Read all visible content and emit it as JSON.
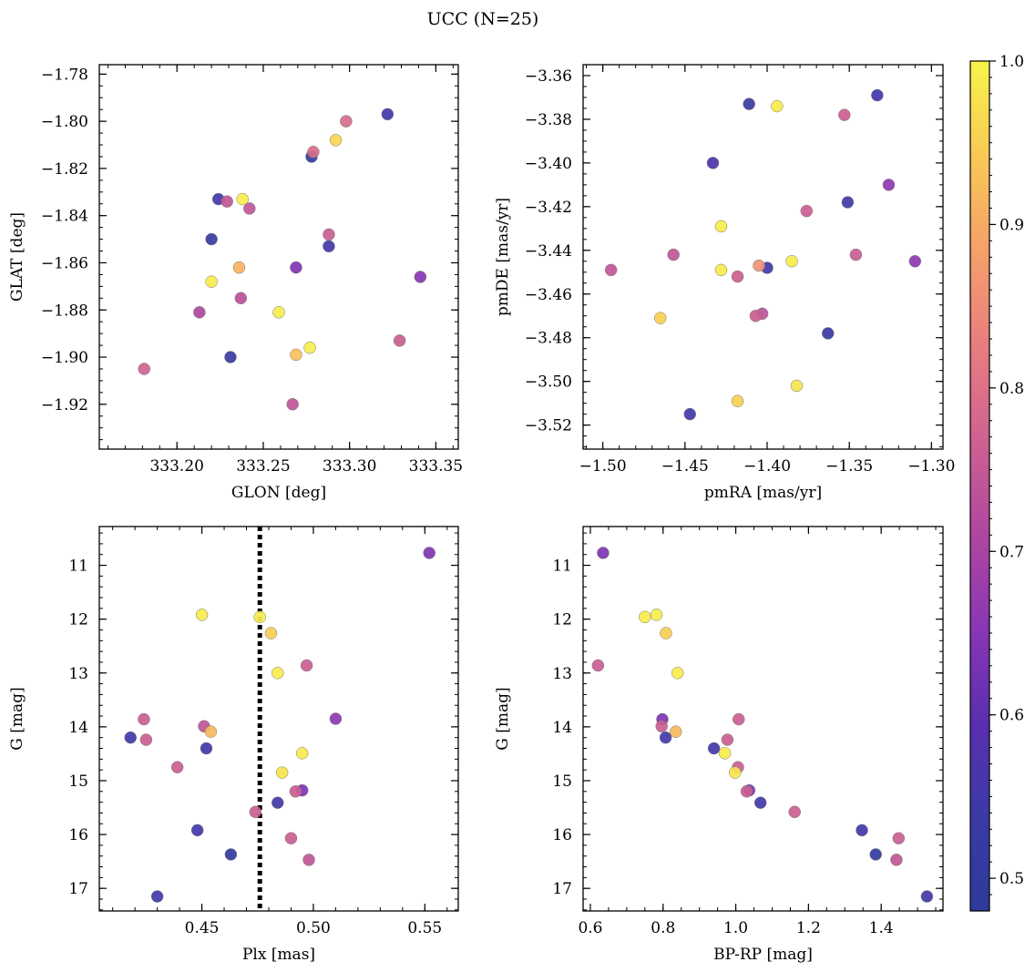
{
  "title": "UCC (N=25)",
  "colorbar": {
    "range": [
      0.48,
      1.0
    ],
    "ticks": [
      0.5,
      0.6,
      0.7,
      0.8,
      0.9,
      1.0
    ],
    "tick_labels": [
      "0.5",
      "0.6",
      "0.7",
      "0.8",
      "0.9",
      "1.0"
    ],
    "colormap": "plasma",
    "stops": [
      "#2d3b99",
      "#3b3aa6",
      "#5a2fb0",
      "#8a36b4",
      "#b0479f",
      "#cf6291",
      "#e87e7f",
      "#f6a06a",
      "#f8c955",
      "#f7f34a"
    ]
  },
  "chart_data": [
    {
      "type": "scatter",
      "xlabel": "GLON [deg]",
      "ylabel": "GLAT [deg]",
      "xlim": [
        333.155,
        333.363
      ],
      "ylim": [
        -1.939,
        -1.776
      ],
      "xticks": [
        333.2,
        333.25,
        333.3,
        333.35
      ],
      "xtick_labels": [
        "333.20",
        "333.25",
        "333.30",
        "333.35"
      ],
      "yticks": [
        -1.78,
        -1.8,
        -1.82,
        -1.84,
        -1.86,
        -1.88,
        -1.9,
        -1.92
      ],
      "ytick_labels": [
        "−1.78",
        "−1.80",
        "−1.82",
        "−1.84",
        "−1.86",
        "−1.88",
        "−1.90",
        "−1.92"
      ],
      "xminor": 0.01,
      "yminor": 0.005,
      "points": [
        {
          "x": 333.298,
          "y": -1.8,
          "c": 0.79
        },
        {
          "x": 333.292,
          "y": -1.808,
          "c": 0.96
        },
        {
          "x": 333.322,
          "y": -1.797,
          "c": 0.55
        },
        {
          "x": 333.279,
          "y": -1.813,
          "c": 0.79
        },
        {
          "x": 333.278,
          "y": -1.815,
          "c": 0.5
        },
        {
          "x": 333.224,
          "y": -1.833,
          "c": 0.55
        },
        {
          "x": 333.229,
          "y": -1.834,
          "c": 0.74
        },
        {
          "x": 333.238,
          "y": -1.833,
          "c": 0.99
        },
        {
          "x": 333.242,
          "y": -1.837,
          "c": 0.74
        },
        {
          "x": 333.22,
          "y": -1.85,
          "c": 0.53
        },
        {
          "x": 333.288,
          "y": -1.848,
          "c": 0.76
        },
        {
          "x": 333.288,
          "y": -1.853,
          "c": 0.55
        },
        {
          "x": 333.269,
          "y": -1.862,
          "c": 0.64
        },
        {
          "x": 333.236,
          "y": -1.862,
          "c": 0.91
        },
        {
          "x": 333.22,
          "y": -1.868,
          "c": 0.99
        },
        {
          "x": 333.341,
          "y": -1.866,
          "c": 0.65
        },
        {
          "x": 333.237,
          "y": -1.875,
          "c": 0.73
        },
        {
          "x": 333.213,
          "y": -1.881,
          "c": 0.71
        },
        {
          "x": 333.259,
          "y": -1.881,
          "c": 0.99
        },
        {
          "x": 333.277,
          "y": -1.896,
          "c": 0.99
        },
        {
          "x": 333.269,
          "y": -1.899,
          "c": 0.93
        },
        {
          "x": 333.231,
          "y": -1.9,
          "c": 0.53
        },
        {
          "x": 333.329,
          "y": -1.893,
          "c": 0.76
        },
        {
          "x": 333.181,
          "y": -1.905,
          "c": 0.77
        },
        {
          "x": 333.267,
          "y": -1.92,
          "c": 0.74
        }
      ]
    },
    {
      "type": "scatter",
      "xlabel": "pmRA [mas/yr]",
      "ylabel": "pmDE [mas/yr]",
      "xlim": [
        -1.512,
        -1.293
      ],
      "ylim": [
        -3.531,
        -3.355
      ],
      "xticks": [
        -1.5,
        -1.45,
        -1.4,
        -1.35,
        -1.3
      ],
      "xtick_labels": [
        "−1.50",
        "−1.45",
        "−1.40",
        "−1.35",
        "−1.30"
      ],
      "yticks": [
        -3.36,
        -3.38,
        -3.4,
        -3.42,
        -3.44,
        -3.46,
        -3.48,
        -3.5,
        -3.52
      ],
      "ytick_labels": [
        "−3.36",
        "−3.38",
        "−3.40",
        "−3.42",
        "−3.44",
        "−3.46",
        "−3.48",
        "−3.50",
        "−3.52"
      ],
      "xminor": 0.01,
      "yminor": 0.005,
      "points": [
        {
          "x": -1.411,
          "y": -3.373,
          "c": 0.53
        },
        {
          "x": -1.394,
          "y": -3.374,
          "c": 0.99
        },
        {
          "x": -1.333,
          "y": -3.369,
          "c": 0.55
        },
        {
          "x": -1.353,
          "y": -3.378,
          "c": 0.76
        },
        {
          "x": -1.433,
          "y": -3.4,
          "c": 0.57
        },
        {
          "x": -1.326,
          "y": -3.41,
          "c": 0.66
        },
        {
          "x": -1.351,
          "y": -3.418,
          "c": 0.55
        },
        {
          "x": -1.376,
          "y": -3.422,
          "c": 0.76
        },
        {
          "x": -1.428,
          "y": -3.429,
          "c": 0.99
        },
        {
          "x": -1.457,
          "y": -3.442,
          "c": 0.74
        },
        {
          "x": -1.346,
          "y": -3.442,
          "c": 0.76
        },
        {
          "x": -1.385,
          "y": -3.445,
          "c": 0.99
        },
        {
          "x": -1.31,
          "y": -3.445,
          "c": 0.66
        },
        {
          "x": -1.405,
          "y": -3.447,
          "c": 0.86
        },
        {
          "x": -1.4,
          "y": -3.448,
          "c": 0.55
        },
        {
          "x": -1.495,
          "y": -3.449,
          "c": 0.74
        },
        {
          "x": -1.428,
          "y": -3.449,
          "c": 0.99
        },
        {
          "x": -1.418,
          "y": -3.452,
          "c": 0.76
        },
        {
          "x": -1.403,
          "y": -3.469,
          "c": 0.74
        },
        {
          "x": -1.407,
          "y": -3.47,
          "c": 0.76
        },
        {
          "x": -1.465,
          "y": -3.471,
          "c": 0.95
        },
        {
          "x": -1.363,
          "y": -3.478,
          "c": 0.53
        },
        {
          "x": -1.382,
          "y": -3.502,
          "c": 0.98
        },
        {
          "x": -1.418,
          "y": -3.509,
          "c": 0.95
        },
        {
          "x": -1.447,
          "y": -3.515,
          "c": 0.55
        }
      ]
    },
    {
      "type": "scatter",
      "xlabel": "Plx [mas]",
      "ylabel": "G [mag]",
      "xlim": [
        0.404,
        0.565
      ],
      "ylim": [
        17.42,
        10.28
      ],
      "xticks": [
        0.45,
        0.5,
        0.55
      ],
      "xtick_labels": [
        "0.45",
        "0.50",
        "0.55"
      ],
      "yticks": [
        11,
        12,
        13,
        14,
        15,
        16,
        17
      ],
      "ytick_labels": [
        "11",
        "12",
        "13",
        "14",
        "15",
        "16",
        "17"
      ],
      "xminor": 0.01,
      "yminor": 0.2,
      "vline": 0.476,
      "points": [
        {
          "x": 0.552,
          "y": 10.77,
          "c": 0.64
        },
        {
          "x": 0.45,
          "y": 11.92,
          "c": 0.99
        },
        {
          "x": 0.476,
          "y": 11.96,
          "c": 0.99
        },
        {
          "x": 0.481,
          "y": 12.26,
          "c": 0.95
        },
        {
          "x": 0.497,
          "y": 12.86,
          "c": 0.76
        },
        {
          "x": 0.484,
          "y": 13.0,
          "c": 0.99
        },
        {
          "x": 0.424,
          "y": 13.86,
          "c": 0.76
        },
        {
          "x": 0.51,
          "y": 13.85,
          "c": 0.66
        },
        {
          "x": 0.451,
          "y": 13.99,
          "c": 0.74
        },
        {
          "x": 0.454,
          "y": 14.09,
          "c": 0.92
        },
        {
          "x": 0.418,
          "y": 14.2,
          "c": 0.55
        },
        {
          "x": 0.425,
          "y": 14.24,
          "c": 0.76
        },
        {
          "x": 0.452,
          "y": 14.4,
          "c": 0.55
        },
        {
          "x": 0.495,
          "y": 14.49,
          "c": 0.99
        },
        {
          "x": 0.439,
          "y": 14.75,
          "c": 0.76
        },
        {
          "x": 0.486,
          "y": 14.85,
          "c": 0.98
        },
        {
          "x": 0.495,
          "y": 15.18,
          "c": 0.64
        },
        {
          "x": 0.492,
          "y": 15.2,
          "c": 0.76
        },
        {
          "x": 0.484,
          "y": 15.41,
          "c": 0.55
        },
        {
          "x": 0.474,
          "y": 15.58,
          "c": 0.76
        },
        {
          "x": 0.448,
          "y": 15.92,
          "c": 0.55
        },
        {
          "x": 0.49,
          "y": 16.07,
          "c": 0.76
        },
        {
          "x": 0.463,
          "y": 16.37,
          "c": 0.5
        },
        {
          "x": 0.498,
          "y": 16.47,
          "c": 0.74
        },
        {
          "x": 0.43,
          "y": 17.15,
          "c": 0.55
        }
      ]
    },
    {
      "type": "scatter",
      "xlabel": "BP-RP [mag]",
      "ylabel": "G [mag]",
      "xlim": [
        0.58,
        1.57
      ],
      "ylim": [
        17.42,
        10.28
      ],
      "xticks": [
        0.6,
        0.8,
        1.0,
        1.2,
        1.4
      ],
      "xtick_labels": [
        "0.6",
        "0.8",
        "1.0",
        "1.2",
        "1.4"
      ],
      "yticks": [
        11,
        12,
        13,
        14,
        15,
        16,
        17
      ],
      "ytick_labels": [
        "11",
        "12",
        "13",
        "14",
        "15",
        "16",
        "17"
      ],
      "xminor": 0.05,
      "yminor": 0.2,
      "points": [
        {
          "x": 0.635,
          "y": 10.77,
          "c": 0.64
        },
        {
          "x": 0.782,
          "y": 11.92,
          "c": 0.99
        },
        {
          "x": 0.75,
          "y": 11.96,
          "c": 0.99
        },
        {
          "x": 0.808,
          "y": 12.26,
          "c": 0.95
        },
        {
          "x": 0.621,
          "y": 12.86,
          "c": 0.76
        },
        {
          "x": 0.84,
          "y": 13.0,
          "c": 0.99
        },
        {
          "x": 0.798,
          "y": 13.86,
          "c": 0.64
        },
        {
          "x": 1.008,
          "y": 13.86,
          "c": 0.76
        },
        {
          "x": 0.796,
          "y": 13.99,
          "c": 0.76
        },
        {
          "x": 0.835,
          "y": 14.09,
          "c": 0.92
        },
        {
          "x": 0.807,
          "y": 14.2,
          "c": 0.55
        },
        {
          "x": 0.977,
          "y": 14.24,
          "c": 0.76
        },
        {
          "x": 0.94,
          "y": 14.4,
          "c": 0.55
        },
        {
          "x": 0.97,
          "y": 14.49,
          "c": 0.99
        },
        {
          "x": 1.006,
          "y": 14.75,
          "c": 0.76
        },
        {
          "x": 0.998,
          "y": 14.85,
          "c": 0.98
        },
        {
          "x": 1.037,
          "y": 15.18,
          "c": 0.64
        },
        {
          "x": 1.03,
          "y": 15.2,
          "c": 0.76
        },
        {
          "x": 1.068,
          "y": 15.41,
          "c": 0.55
        },
        {
          "x": 1.162,
          "y": 15.58,
          "c": 0.76
        },
        {
          "x": 1.347,
          "y": 15.92,
          "c": 0.55
        },
        {
          "x": 1.448,
          "y": 16.07,
          "c": 0.76
        },
        {
          "x": 1.385,
          "y": 16.37,
          "c": 0.5
        },
        {
          "x": 1.442,
          "y": 16.47,
          "c": 0.74
        },
        {
          "x": 1.526,
          "y": 17.15,
          "c": 0.55
        }
      ]
    }
  ]
}
